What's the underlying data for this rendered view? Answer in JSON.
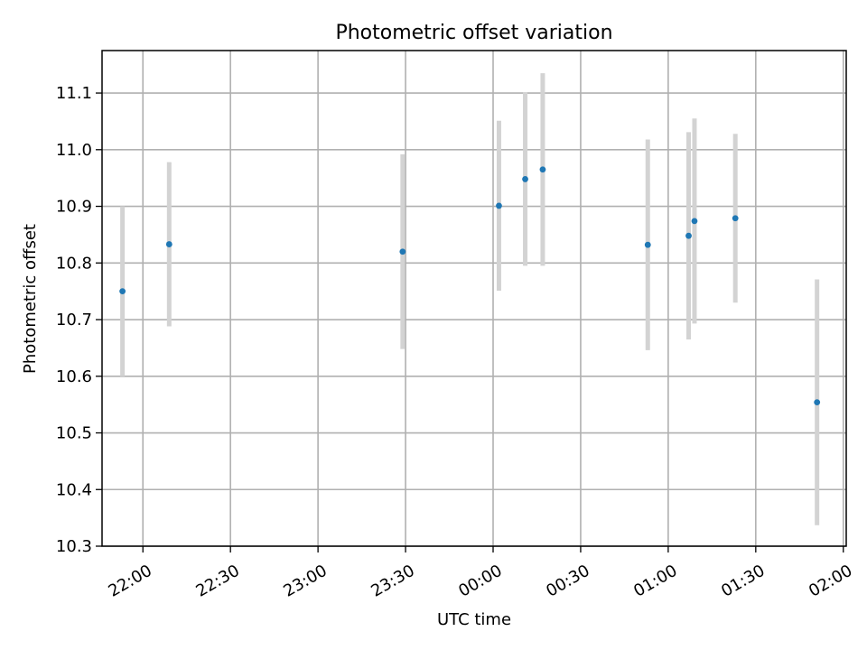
{
  "chart_data": {
    "type": "scatter",
    "title": "Photometric offset variation",
    "xlabel": "UTC time",
    "ylabel": "Photometric offset",
    "grid": true,
    "ylim": [
      10.3,
      11.175
    ],
    "xlim": [
      "21:46",
      "02:01"
    ],
    "x_ticks": [
      "22:00",
      "22:30",
      "23:00",
      "23:30",
      "00:00",
      "00:30",
      "01:00",
      "01:30",
      "02:00"
    ],
    "y_ticks": [
      "10.3",
      "10.4",
      "10.5",
      "10.6",
      "10.7",
      "10.8",
      "10.9",
      "11.0",
      "11.1"
    ],
    "point_color": "#1f77b4",
    "errorbar_color": "#d3d3d3",
    "points": [
      {
        "x": "21:53",
        "y": 10.75,
        "err": 0.15
      },
      {
        "x": "22:09",
        "y": 10.833,
        "err": 0.145
      },
      {
        "x": "23:29",
        "y": 10.82,
        "err": 0.172
      },
      {
        "x": "00:02",
        "y": 10.901,
        "err": 0.15
      },
      {
        "x": "00:11",
        "y": 10.948,
        "err": 0.153
      },
      {
        "x": "00:17",
        "y": 10.965,
        "err": 0.17
      },
      {
        "x": "00:53",
        "y": 10.832,
        "err": 0.186
      },
      {
        "x": "01:07",
        "y": 10.848,
        "err": 0.183
      },
      {
        "x": "01:09",
        "y": 10.874,
        "err": 0.181
      },
      {
        "x": "01:23",
        "y": 10.879,
        "err": 0.149
      },
      {
        "x": "01:51",
        "y": 10.554,
        "err": 0.217
      }
    ]
  }
}
